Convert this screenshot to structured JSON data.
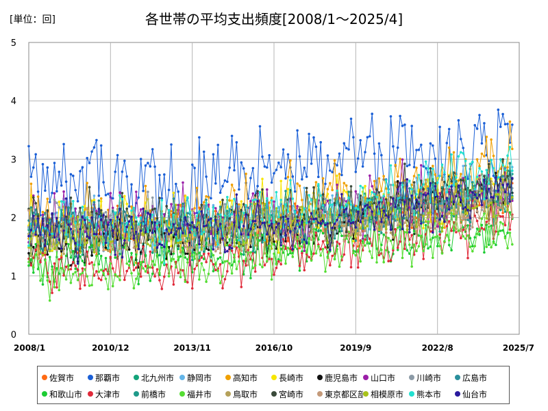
{
  "unit_label": "[単位：回]",
  "chart_data": {
    "type": "line",
    "title": "各世帯の平均支出頻度[2008/1～2025/4]",
    "xlabel": "",
    "ylabel": "",
    "x_start": "2008-01",
    "x_end": "2025-04",
    "xlim": [
      "2008-01",
      "2025-07"
    ],
    "ylim": [
      0,
      5
    ],
    "y_ticks": [
      "0",
      "1",
      "2",
      "3",
      "4",
      "5"
    ],
    "x_ticks": [
      "2008/1",
      "2010/12",
      "2013/11",
      "2016/10",
      "2019/9",
      "2022/8",
      "2025/7"
    ],
    "grid": true,
    "legend_position": "bottom",
    "series": [
      {
        "name": "佐賀市",
        "color": "#ff6a13",
        "base": [
          1.75,
          1.75,
          2.05,
          2.25
        ],
        "amp": 0.32
      },
      {
        "name": "那覇市",
        "color": "#1a5fd6",
        "base": [
          2.65,
          2.65,
          2.95,
          3.25
        ],
        "amp": 0.55
      },
      {
        "name": "北九州市",
        "color": "#13a37a",
        "base": [
          1.65,
          1.65,
          1.95,
          2.3
        ],
        "amp": 0.3
      },
      {
        "name": "静岡市",
        "color": "#64b5e8",
        "base": [
          1.85,
          1.85,
          2.1,
          2.55
        ],
        "amp": 0.3
      },
      {
        "name": "高知市",
        "color": "#f0a000",
        "base": [
          1.95,
          2.0,
          2.35,
          2.9
        ],
        "amp": 0.45
      },
      {
        "name": "長崎市",
        "color": "#f7e600",
        "base": [
          1.85,
          1.85,
          2.1,
          2.6
        ],
        "amp": 0.38
      },
      {
        "name": "鹿児島市",
        "color": "#111111",
        "base": [
          1.55,
          1.6,
          1.9,
          2.5
        ],
        "amp": 0.3
      },
      {
        "name": "山口市",
        "color": "#9b1fa8",
        "base": [
          2.0,
          1.95,
          2.1,
          2.55
        ],
        "amp": 0.38
      },
      {
        "name": "川崎市",
        "color": "#8c9aa6",
        "base": [
          1.95,
          1.9,
          2.05,
          2.45
        ],
        "amp": 0.3
      },
      {
        "name": "広島市",
        "color": "#2a8f9c",
        "base": [
          1.85,
          1.85,
          2.05,
          2.4
        ],
        "amp": 0.3
      },
      {
        "name": "和歌山市",
        "color": "#1ccc33",
        "base": [
          1.25,
          1.3,
          1.55,
          1.8
        ],
        "amp": 0.3
      },
      {
        "name": "大津市",
        "color": "#e02a3a",
        "base": [
          1.15,
          1.15,
          1.5,
          2.0
        ],
        "amp": 0.3
      },
      {
        "name": "前橋市",
        "color": "#1f9a8a",
        "base": [
          1.75,
          1.75,
          2.0,
          2.45
        ],
        "amp": 0.3
      },
      {
        "name": "福井市",
        "color": "#55dd33",
        "base": [
          1.05,
          1.2,
          1.5,
          1.75
        ],
        "amp": 0.3
      },
      {
        "name": "鳥取市",
        "color": "#b5a15a",
        "base": [
          1.7,
          1.7,
          2.0,
          2.35
        ],
        "amp": 0.3
      },
      {
        "name": "宮崎市",
        "color": "#3a4a3a",
        "base": [
          1.9,
          1.95,
          2.15,
          2.75
        ],
        "amp": 0.32
      },
      {
        "name": "東京都区部",
        "color": "#c49a7a",
        "base": [
          1.7,
          1.7,
          1.85,
          2.2
        ],
        "amp": 0.28
      },
      {
        "name": "相模原市",
        "color": "#a8c21a",
        "base": [
          1.6,
          1.75,
          1.95,
          2.3
        ],
        "amp": 0.3
      },
      {
        "name": "熊本市",
        "color": "#22e0d0",
        "base": [
          1.85,
          1.9,
          2.2,
          2.9
        ],
        "amp": 0.35
      },
      {
        "name": "仙台市",
        "color": "#2a1a9e",
        "base": [
          1.75,
          1.75,
          2.0,
          2.5
        ],
        "amp": 0.3
      }
    ]
  }
}
